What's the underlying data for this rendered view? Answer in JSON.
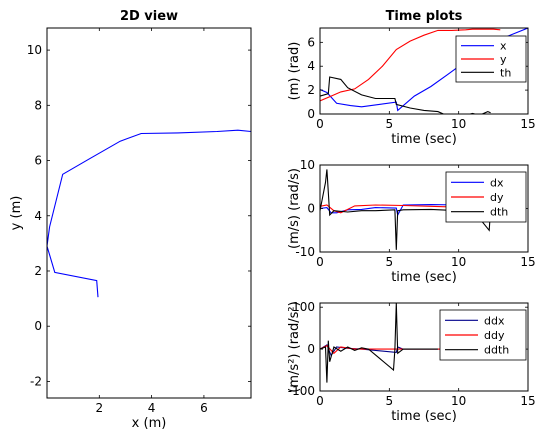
{
  "chart_data": [
    {
      "type": "line",
      "title": "2D view",
      "xlabel": "x (m)",
      "ylabel": "y (m)",
      "xlim": [
        0,
        7.8
      ],
      "ylim": [
        -2.6,
        10.8
      ],
      "xticks": [
        "2",
        "4",
        "6"
      ],
      "yticks": [
        "-2",
        "0",
        "2",
        "4",
        "6",
        "8",
        "10"
      ],
      "series": [
        {
          "color": "#0000ff",
          "x": [
            1.95,
            1.9,
            0.3,
            0.0,
            0.1,
            0.6,
            1.6,
            2.8,
            3.6,
            5.0,
            6.5,
            7.3,
            7.8
          ],
          "y": [
            1.05,
            1.65,
            1.95,
            2.9,
            3.6,
            5.5,
            6.05,
            6.7,
            6.98,
            7.0,
            7.05,
            7.1,
            7.05
          ]
        }
      ]
    },
    {
      "type": "line",
      "title": "Time plots",
      "xlabel": "time (sec)",
      "ylabel": "(m) (rad)",
      "xlim": [
        0,
        15
      ],
      "ylim": [
        0,
        7.2
      ],
      "xticks": [
        "0",
        "5",
        "10",
        "15"
      ],
      "yticks": [
        "0",
        "2",
        "4",
        "6"
      ],
      "legend": "top-right",
      "series": [
        {
          "name": "x",
          "color": "#0000ff",
          "x": [
            0,
            0.5,
            1.2,
            2.2,
            3.0,
            5.5,
            5.6,
            6.8,
            8.0,
            9.2,
            10.5,
            12.0,
            13.5,
            15.0
          ],
          "y": [
            2.05,
            1.8,
            0.9,
            0.7,
            0.6,
            1.0,
            0.3,
            1.5,
            2.3,
            3.3,
            4.4,
            5.6,
            6.5,
            7.2
          ]
        },
        {
          "name": "y",
          "color": "#ff0000",
          "x": [
            0,
            0.8,
            1.5,
            2.5,
            3.5,
            4.5,
            5.5,
            6.5,
            7.5,
            8.5,
            9.5,
            10.5,
            11.0,
            12.5,
            13.0
          ],
          "y": [
            1.1,
            1.5,
            1.85,
            2.1,
            2.9,
            4.0,
            5.4,
            6.1,
            6.6,
            7.0,
            7.0,
            7.05,
            7.1,
            7.1,
            7.05
          ]
        },
        {
          "name": "th",
          "color": "#000000",
          "x": [
            0,
            0.6,
            0.7,
            1.5,
            2.0,
            3.0,
            4.0,
            5.4,
            5.5,
            6.5,
            7.5,
            8.5,
            9.0,
            10.0,
            10.5,
            11.0,
            11.5,
            12.1,
            12.3
          ],
          "y": [
            1.5,
            1.7,
            3.1,
            2.9,
            2.2,
            1.6,
            1.3,
            1.3,
            0.8,
            0.5,
            0.3,
            0.2,
            -0.05,
            -0.1,
            -0.1,
            0.05,
            -0.1,
            0.2,
            0.1
          ]
        }
      ]
    },
    {
      "type": "line",
      "title": "",
      "xlabel": "time (sec)",
      "ylabel": "(m/s) (rad/s)",
      "xlim": [
        0,
        15
      ],
      "ylim": [
        -10,
        10
      ],
      "xticks": [
        "0",
        "5",
        "10",
        "15"
      ],
      "yticks": [
        "-10",
        "0",
        "10"
      ],
      "legend": "top-right",
      "series": [
        {
          "name": "dx",
          "color": "#0000ff",
          "x": [
            0,
            0.5,
            0.8,
            1.2,
            2.0,
            3.0,
            4.0,
            5.5,
            5.6,
            6.0,
            8.0,
            10.0,
            12.0,
            14.0
          ],
          "y": [
            0,
            0.2,
            -1.0,
            -1.0,
            -0.3,
            -0.2,
            0.2,
            0.1,
            -1.5,
            0.8,
            0.9,
            0.8,
            0.8,
            0.7
          ]
        },
        {
          "name": "dy",
          "color": "#ff0000",
          "x": [
            0,
            0.5,
            1.0,
            1.5,
            2.5,
            4.0,
            6.0,
            8.0,
            10.0,
            12.0,
            14.0
          ],
          "y": [
            0.5,
            0.8,
            -0.5,
            -1.0,
            0.6,
            0.8,
            0.7,
            0.5,
            0.3,
            0.2,
            0.1
          ]
        },
        {
          "name": "dth",
          "color": "#000000",
          "x": [
            0,
            0.4,
            0.5,
            0.7,
            1.0,
            2.0,
            3.0,
            4.0,
            5.4,
            5.5,
            5.6,
            6.0,
            8.0,
            10.0,
            11.0,
            12.2,
            12.3
          ],
          "y": [
            -0.5,
            6.0,
            9.0,
            -1.5,
            -0.5,
            -0.8,
            -0.5,
            -0.5,
            -0.3,
            -9.5,
            -0.5,
            -0.3,
            -0.2,
            -0.5,
            -0.3,
            -5.0,
            -0.2
          ]
        }
      ]
    },
    {
      "type": "line",
      "title": "",
      "xlabel": "time (sec)",
      "ylabel": "(m/s²) (rad/s²)",
      "xlim": [
        0,
        15
      ],
      "ylim": [
        -100,
        110
      ],
      "xticks": [
        "0",
        "5",
        "10",
        "15"
      ],
      "yticks": [
        "-100",
        "0",
        "100"
      ],
      "legend": "top-right",
      "series": [
        {
          "name": "ddx",
          "color": "#00008b",
          "x": [
            0,
            0.5,
            0.8,
            1.2,
            2.0,
            3.0,
            5.5,
            5.6,
            6.0,
            8.0,
            10.0
          ],
          "y": [
            0,
            10,
            -15,
            5,
            2,
            0,
            -8,
            5,
            0,
            0,
            0
          ]
        },
        {
          "name": "ddy",
          "color": "#ff0000",
          "x": [
            0,
            0.5,
            1.0,
            1.5,
            2.5,
            4.0,
            6.0,
            8.0,
            10.0
          ],
          "y": [
            0,
            8,
            -10,
            5,
            0,
            0,
            0,
            0,
            0
          ]
        },
        {
          "name": "ddth",
          "color": "#000000",
          "x": [
            0,
            0.4,
            0.5,
            0.6,
            0.7,
            1.0,
            1.5,
            2.0,
            2.5,
            3.0,
            3.5,
            5.3,
            5.4,
            5.5,
            5.6,
            6.0,
            7.0,
            8.0,
            8.5
          ],
          "y": [
            0,
            5,
            -80,
            20,
            -30,
            5,
            -5,
            5,
            -3,
            3,
            0,
            -50,
            0,
            110,
            -10,
            0,
            0,
            0,
            0
          ]
        }
      ]
    }
  ]
}
